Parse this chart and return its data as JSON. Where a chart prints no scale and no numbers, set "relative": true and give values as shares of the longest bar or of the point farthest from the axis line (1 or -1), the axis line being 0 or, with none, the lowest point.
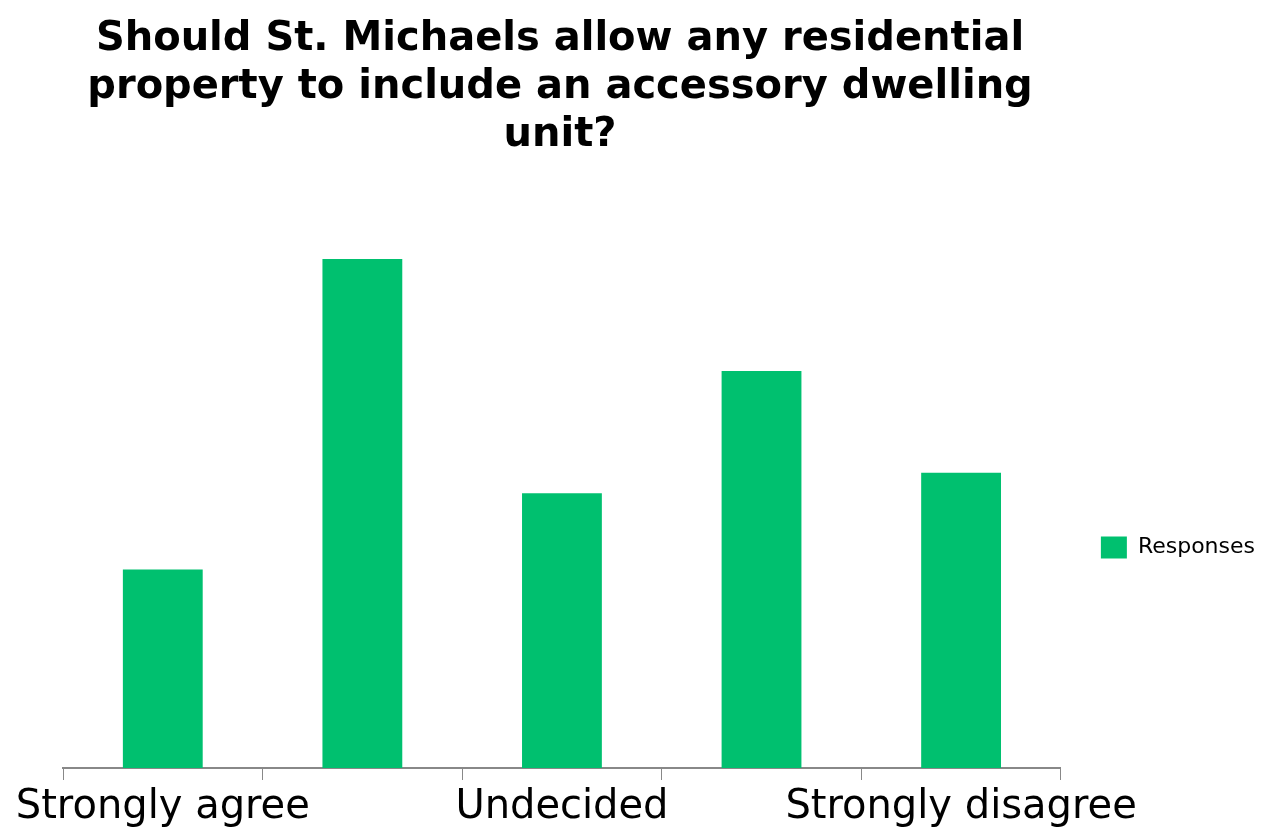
{
  "chart_data": {
    "type": "bar",
    "title": "Should St. Michaels allow any residential property to include an accessory dwelling unit?",
    "categories": [
      "Strongly agree",
      null,
      "Undecided",
      null,
      "Strongly disagree"
    ],
    "relative": true,
    "series": [
      {
        "name": "Responses",
        "color": "#00c06f",
        "values": [
          0.39,
          1,
          0.54,
          0.78,
          0.58
        ]
      }
    ],
    "legend": "right",
    "grid": false
  }
}
